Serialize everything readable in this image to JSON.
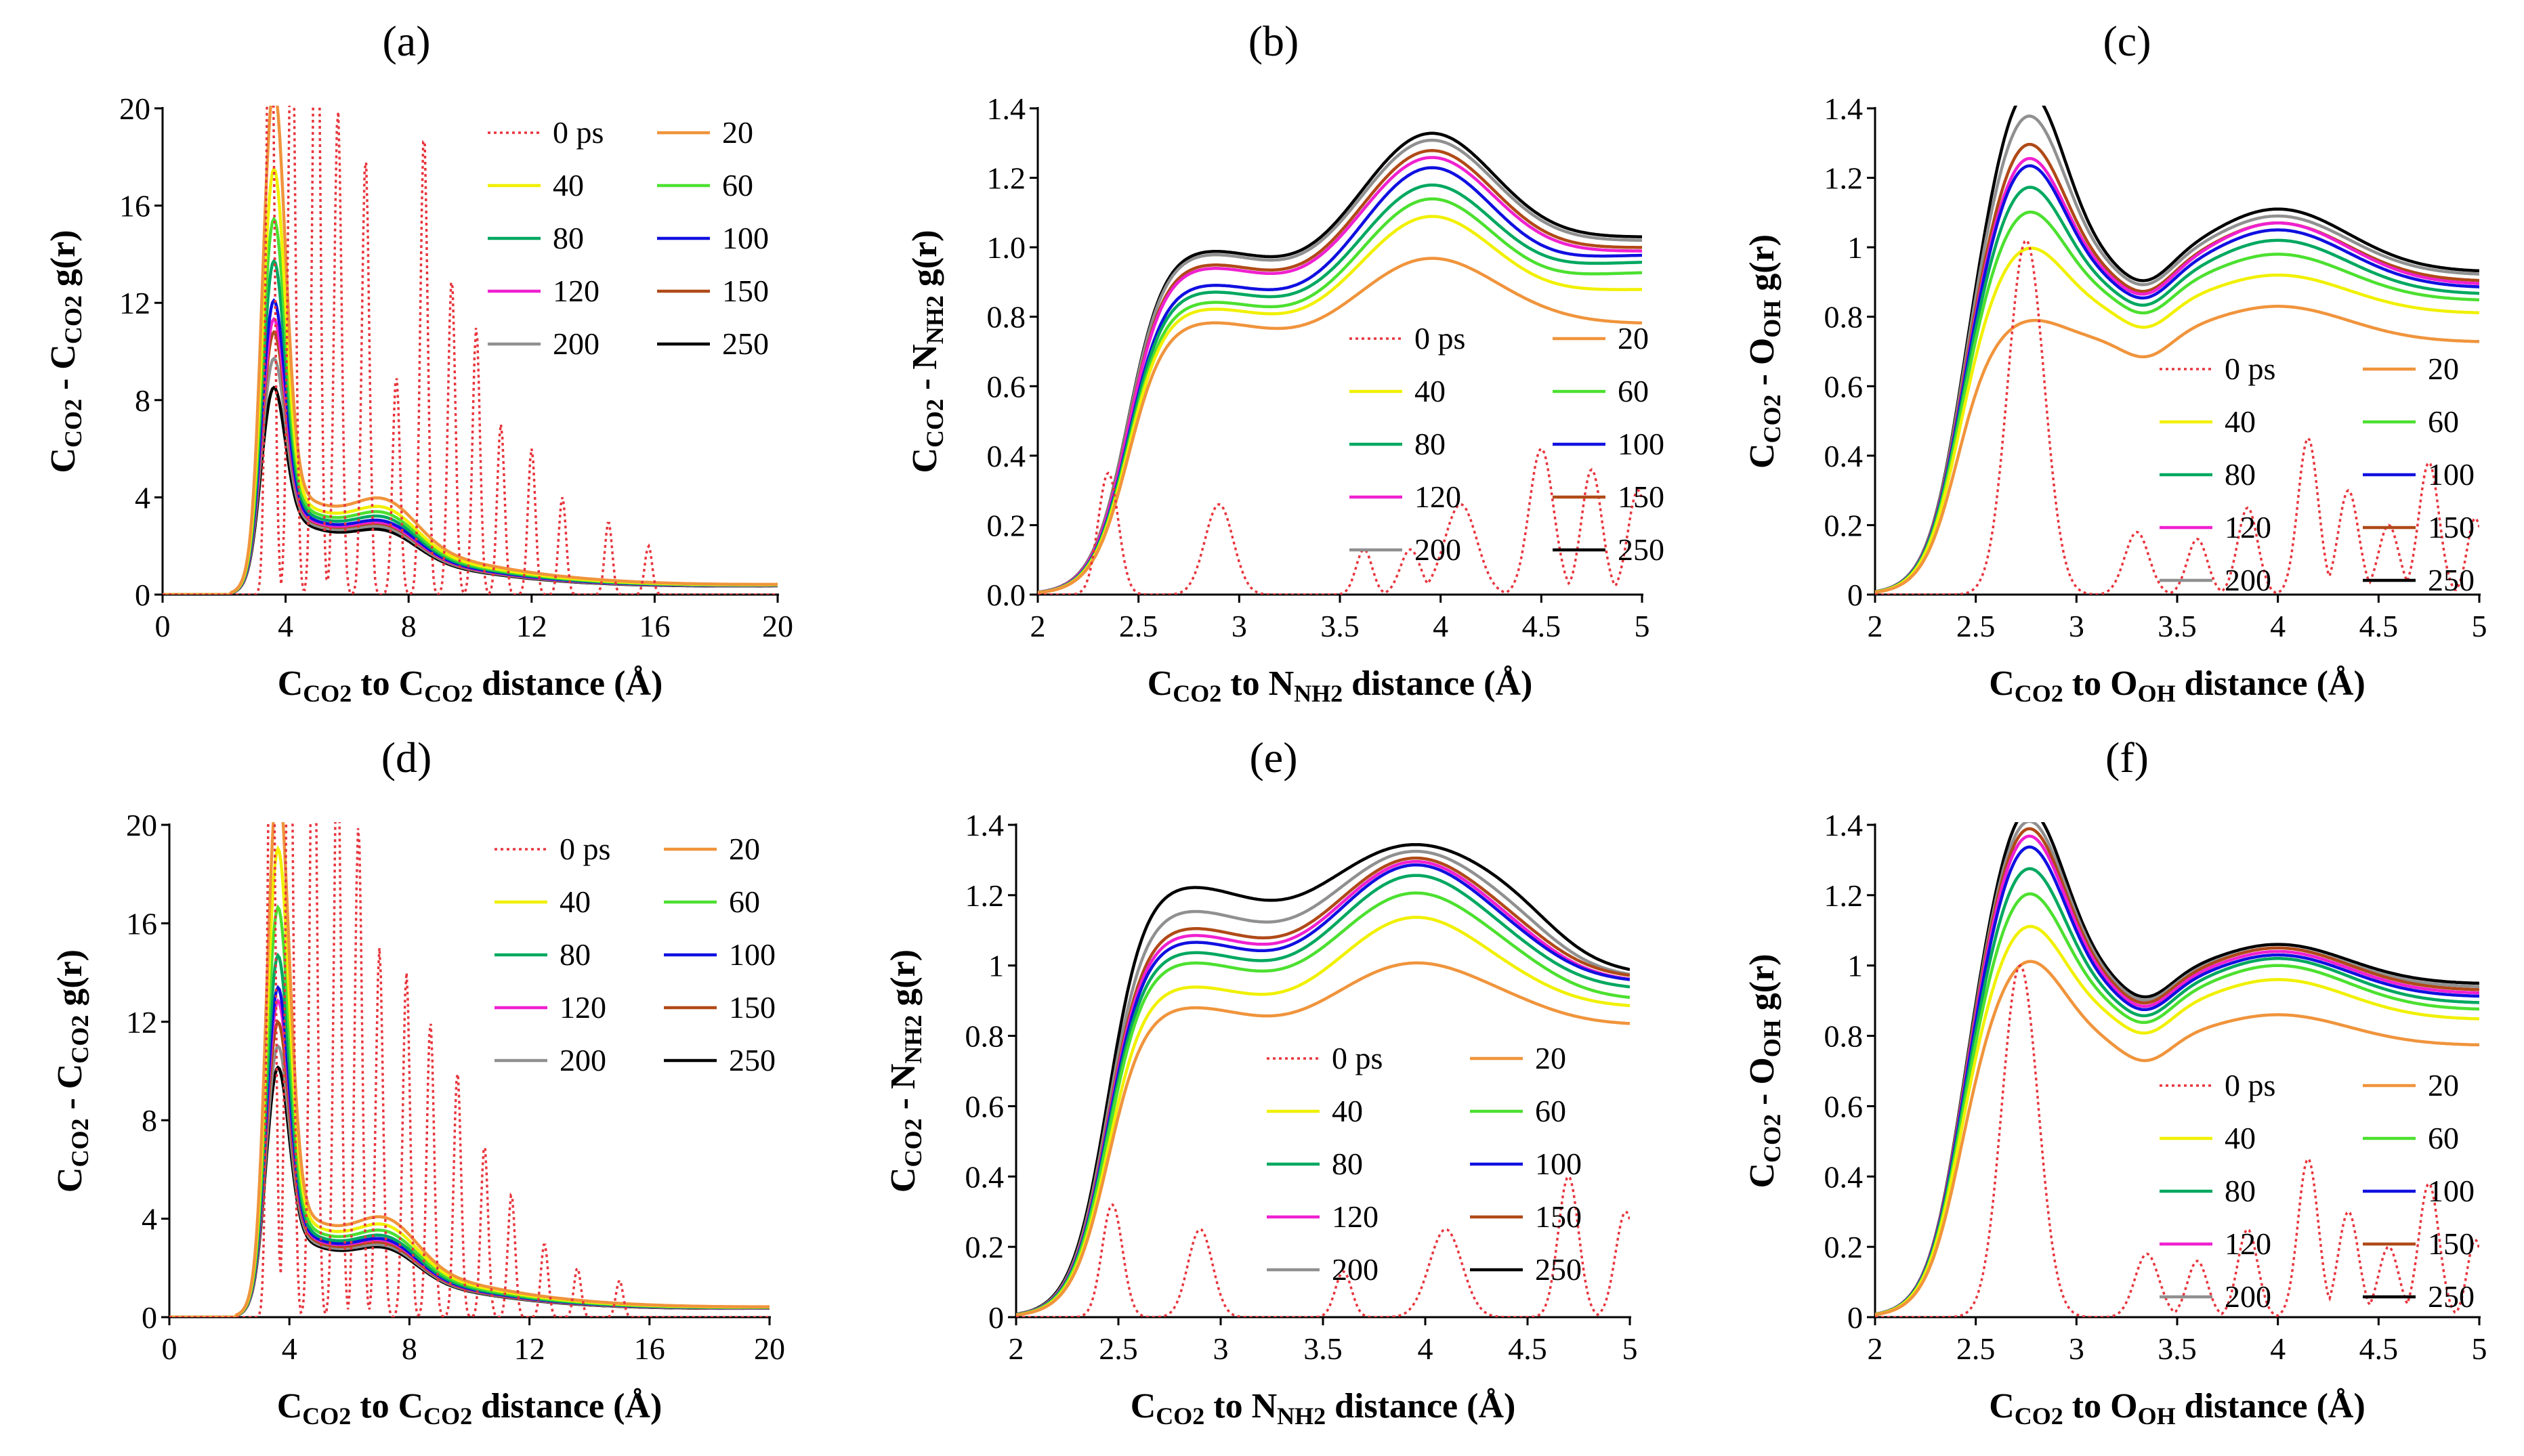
{
  "figure": {
    "series_names": [
      "0 ps",
      "20",
      "40",
      "60",
      "80",
      "100",
      "120",
      "150",
      "200",
      "250"
    ],
    "series_colors": [
      "#e8343c",
      "#f0943c",
      "#f0f000",
      "#4ce030",
      "#00a860",
      "#1010e0",
      "#f020d0",
      "#b04a18",
      "#909090",
      "#000000"
    ]
  },
  "chart_data": [
    {
      "panel": "(a)",
      "type": "line",
      "dataset": "cc",
      "xlim": [
        0,
        20
      ],
      "xticks": [
        "0",
        "4",
        "8",
        "12",
        "16",
        "20"
      ],
      "ylim": [
        0,
        20
      ],
      "yticks": [
        "0",
        "4",
        "8",
        "12",
        "16",
        "20"
      ],
      "xlabel": {
        "main": "C",
        "sub1": "CO2",
        "mid": " to C",
        "sub2": "CO2",
        "tail": " distance (Å)"
      },
      "ylabel": {
        "main": "C",
        "sub1": "CO2",
        "mid": " - C",
        "sub2": "CO2",
        "tail": " g(r)"
      },
      "peaks": [
        18.7,
        15.6,
        13.7,
        12.1,
        10.6,
        9.9,
        9.4,
        8.4,
        7.3
      ],
      "legend_position": "top-right"
    },
    {
      "panel": "(b)",
      "type": "line",
      "dataset": "cn",
      "xlim": [
        2,
        5
      ],
      "xticks": [
        "2",
        "2.5",
        "3",
        "3.5",
        "4",
        "4.5",
        "5"
      ],
      "ylim": [
        0,
        1.4
      ],
      "yticks": [
        "0.0",
        "0.2",
        "0.4",
        "0.6",
        "0.8",
        "1.0",
        "1.2",
        "1.4"
      ],
      "xlabel": {
        "main": "C",
        "sub1": "CO2",
        "mid": " to N",
        "sub2": "NH2",
        "tail": " distance (Å)"
      },
      "ylabel": {
        "main": "C",
        "sub1": "CO2",
        "mid": " - N",
        "sub2": "NH2",
        "tail": " g(r)"
      },
      "shoulder": [
        0.64,
        0.8,
        0.84,
        0.86,
        0.89,
        0.91,
        0.96,
        0.97,
        1.0,
        1.01
      ],
      "peak": [
        0.0,
        0.97,
        1.09,
        1.14,
        1.18,
        1.23,
        1.26,
        1.28,
        1.31,
        1.33
      ],
      "tail": [
        0.0,
        0.78,
        0.88,
        0.93,
        0.96,
        0.98,
        0.99,
        1.0,
        1.02,
        1.03
      ],
      "legend_position": "bottom-right"
    },
    {
      "panel": "(c)",
      "type": "line",
      "dataset": "co",
      "xlim": [
        2,
        5
      ],
      "xticks": [
        "2",
        "2.5",
        "3",
        "3.5",
        "4",
        "4.5",
        "5"
      ],
      "ylim": [
        0,
        1.4
      ],
      "yticks": [
        "0",
        "0.2",
        "0.4",
        "0.6",
        "0.8",
        "1",
        "1.2",
        "1.4"
      ],
      "xlabel": {
        "main": "C",
        "sub1": "CO2",
        "mid": " to O",
        "sub2": "OH",
        "tail": " distance (Å)"
      },
      "ylabel": {
        "main": "C",
        "sub1": "CO2",
        "mid": " - O",
        "sub2": "OH",
        "tail": " g(r)"
      },
      "peak": [
        1.02,
        0.69,
        0.89,
        0.99,
        1.06,
        1.12,
        1.14,
        1.18,
        1.26,
        1.33
      ],
      "second": [
        0.0,
        0.83,
        0.92,
        0.98,
        1.02,
        1.05,
        1.07,
        1.07,
        1.09,
        1.11
      ],
      "tail": [
        0.0,
        0.79,
        0.88,
        0.92,
        0.94,
        0.96,
        0.97,
        0.98,
        1.0,
        1.01
      ],
      "legend_position": "bottom-right"
    },
    {
      "panel": "(d)",
      "type": "line",
      "dataset": "cc",
      "xlim": [
        0,
        20
      ],
      "xticks": [
        "0",
        "4",
        "8",
        "12",
        "16",
        "20"
      ],
      "ylim": [
        0,
        20
      ],
      "yticks": [
        "0",
        "4",
        "8",
        "12",
        "16",
        "20"
      ],
      "xlabel": {
        "main": "C",
        "sub1": "CO2",
        "mid": " to C",
        "sub2": "CO2",
        "tail": " distance (Å)"
      },
      "ylabel": {
        "main": "C",
        "sub1": "CO2",
        "mid": " - C",
        "sub2": "CO2",
        "tail": " g(r)"
      },
      "peaks": [
        19.6,
        17.0,
        14.8,
        13.0,
        11.8,
        11.3,
        10.5,
        9.6,
        8.8
      ],
      "legend_position": "top-right"
    },
    {
      "panel": "(e)",
      "type": "line",
      "dataset": "cn",
      "xlim": [
        2,
        5
      ],
      "xticks": [
        "2",
        "2.5",
        "3",
        "3.5",
        "4",
        "4.5",
        "5"
      ],
      "ylim": [
        0,
        1.4
      ],
      "yticks": [
        "0",
        "0.2",
        "0.4",
        "0.6",
        "0.8",
        "1",
        "1.2",
        "1.4"
      ],
      "xlabel": {
        "main": "C",
        "sub1": "CO2",
        "mid": " to N",
        "sub2": "NH2",
        "tail": " distance (Å)"
      },
      "ylabel": {
        "main": "C",
        "sub1": "CO2",
        "mid": " - N",
        "sub2": "NH2",
        "tail": " g(r)"
      },
      "shoulder": [
        0.78,
        0.9,
        0.96,
        1.03,
        1.06,
        1.09,
        1.11,
        1.13,
        1.18,
        1.25
      ],
      "peak": [
        0.0,
        1.01,
        1.14,
        1.21,
        1.26,
        1.29,
        1.3,
        1.31,
        1.33,
        1.35
      ],
      "tail": [
        0.0,
        0.83,
        0.88,
        0.9,
        0.93,
        0.95,
        0.95,
        0.96,
        0.96,
        0.97
      ],
      "legend_position": "bottom-center"
    },
    {
      "panel": "(f)",
      "type": "line",
      "dataset": "co",
      "xlim": [
        2,
        5
      ],
      "xticks": [
        "2",
        "2.5",
        "3",
        "3.5",
        "4",
        "4.5",
        "5"
      ],
      "ylim": [
        0,
        1.4
      ],
      "yticks": [
        "0",
        "0.2",
        "0.4",
        "0.6",
        "0.8",
        "1",
        "1.2",
        "1.4"
      ],
      "xlabel": {
        "main": "C",
        "sub1": "CO2",
        "mid": " to O",
        "sub2": "OH",
        "tail": " distance (Å)"
      },
      "ylabel": {
        "main": "C",
        "sub1": "CO2",
        "mid": " - O",
        "sub2": "OH",
        "tail": " g(r)"
      },
      "peak": [
        1.0,
        0.91,
        1.0,
        1.09,
        1.16,
        1.22,
        1.25,
        1.27,
        1.29,
        1.32
      ],
      "second": [
        0.0,
        0.86,
        0.96,
        1.0,
        1.02,
        1.03,
        1.04,
        1.05,
        1.05,
        1.06
      ],
      "tail": [
        0.0,
        0.84,
        0.92,
        0.95,
        0.97,
        0.99,
        1.0,
        1.01,
        1.02,
        1.03
      ],
      "legend_position": "bottom-right"
    }
  ]
}
